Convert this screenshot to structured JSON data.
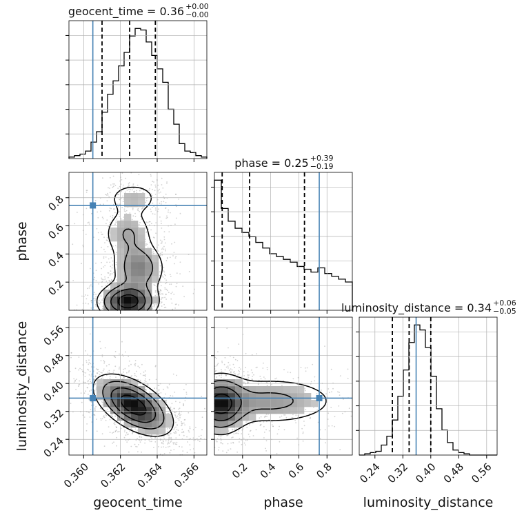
{
  "chart_data": {
    "type": "corner",
    "parameters": [
      "geocent_time",
      "phase",
      "luminosity_distance"
    ],
    "truth": {
      "geocent_time": 0.3605,
      "phase": 0.745,
      "luminosity_distance": 0.358
    },
    "ranges": {
      "geocent_time": [
        0.3592,
        0.3667
      ],
      "phase": [
        0.0,
        0.98
      ],
      "luminosity_distance": [
        0.195,
        0.59
      ]
    },
    "ticks": {
      "geocent_time": {
        "values": [
          0.36,
          0.362,
          0.364,
          0.366
        ],
        "labels": [
          "0.360",
          "0.362",
          "0.364",
          "0.366"
        ]
      },
      "phase": {
        "values": [
          0.2,
          0.4,
          0.6,
          0.8
        ],
        "labels": [
          "0.2",
          "0.4",
          "0.6",
          "0.8"
        ]
      },
      "luminosity_distance": {
        "values": [
          0.24,
          0.32,
          0.4,
          0.48,
          0.56
        ],
        "labels": [
          "0.24",
          "0.32",
          "0.40",
          "0.48",
          "0.56"
        ]
      }
    },
    "axis_labels": {
      "x": [
        "geocent_time",
        "phase",
        "luminosity_distance"
      ],
      "y": [
        "phase",
        "luminosity_distance"
      ]
    },
    "titles": [
      {
        "param": "geocent_time",
        "text": "geocent_time = 0.36",
        "plus": "+0.00",
        "minus": "−0.00"
      },
      {
        "param": "phase",
        "text": "phase = 0.25",
        "plus": "+0.39",
        "minus": "−0.19"
      },
      {
        "param": "luminosity_distance",
        "text": "luminosity_distance = 0.34",
        "plus": "+0.06",
        "minus": "−0.05"
      }
    ],
    "quantiles": {
      "geocent_time": [
        0.361,
        0.3625,
        0.3639
      ],
      "phase": [
        0.055,
        0.25,
        0.64
      ],
      "luminosity_distance": [
        0.29,
        0.338,
        0.4
      ]
    },
    "histograms": {
      "geocent_time": {
        "edges_range": [
          0.3592,
          0.3667
        ],
        "counts": [
          1,
          2,
          3,
          5,
          11,
          18,
          31,
          43,
          52,
          62,
          71,
          82,
          87,
          86,
          78,
          69,
          60,
          51,
          33,
          23,
          10,
          5,
          4,
          2,
          1
        ]
      },
      "phase": {
        "edges_range": [
          0.0,
          0.98
        ],
        "counts": [
          92,
          72,
          63,
          58,
          55,
          52,
          48,
          44,
          40,
          38,
          36,
          34,
          31,
          29,
          27,
          30,
          26,
          24,
          22,
          20
        ]
      },
      "luminosity_distance": {
        "edges_range": [
          0.195,
          0.59
        ],
        "counts": [
          0,
          1,
          2,
          3,
          8,
          15,
          28,
          47,
          68,
          90,
          104,
          100,
          86,
          63,
          37,
          20,
          10,
          4,
          2,
          1,
          0,
          0,
          0,
          0,
          0
        ]
      }
    },
    "density_2d": [
      {
        "x": "geocent_time",
        "y": "phase",
        "components": [
          {
            "mx": 0.3624,
            "my": 0.06,
            "sx": 0.00085,
            "sy": 0.07,
            "w": 1.0
          },
          {
            "mx": 0.363,
            "my": 0.3,
            "sx": 0.0008,
            "sy": 0.1,
            "w": 0.5
          },
          {
            "mx": 0.3624,
            "my": 0.55,
            "sx": 0.0008,
            "sy": 0.1,
            "w": 0.33
          },
          {
            "mx": 0.3627,
            "my": 0.8,
            "sx": 0.0009,
            "sy": 0.07,
            "w": 0.25
          }
        ]
      },
      {
        "x": "geocent_time",
        "y": "luminosity_distance",
        "components": [
          {
            "mx": 0.3627,
            "my": 0.338,
            "sx": 0.0011,
            "sy": 0.045,
            "rho": -0.55,
            "w": 1.0
          }
        ]
      },
      {
        "x": "phase",
        "y": "luminosity_distance",
        "components": [
          {
            "mx": 0.04,
            "my": 0.34,
            "sx": 0.1,
            "sy": 0.045,
            "w": 1.0
          },
          {
            "mx": 0.4,
            "my": 0.35,
            "sx": 0.28,
            "sy": 0.04,
            "w": 0.45
          }
        ]
      }
    ],
    "colors": {
      "truth": "#4682b4",
      "hist": "#000000",
      "quantile": "#000000",
      "points": "#9a9a9a",
      "grid": "#b0b0b0"
    },
    "grid": true
  }
}
